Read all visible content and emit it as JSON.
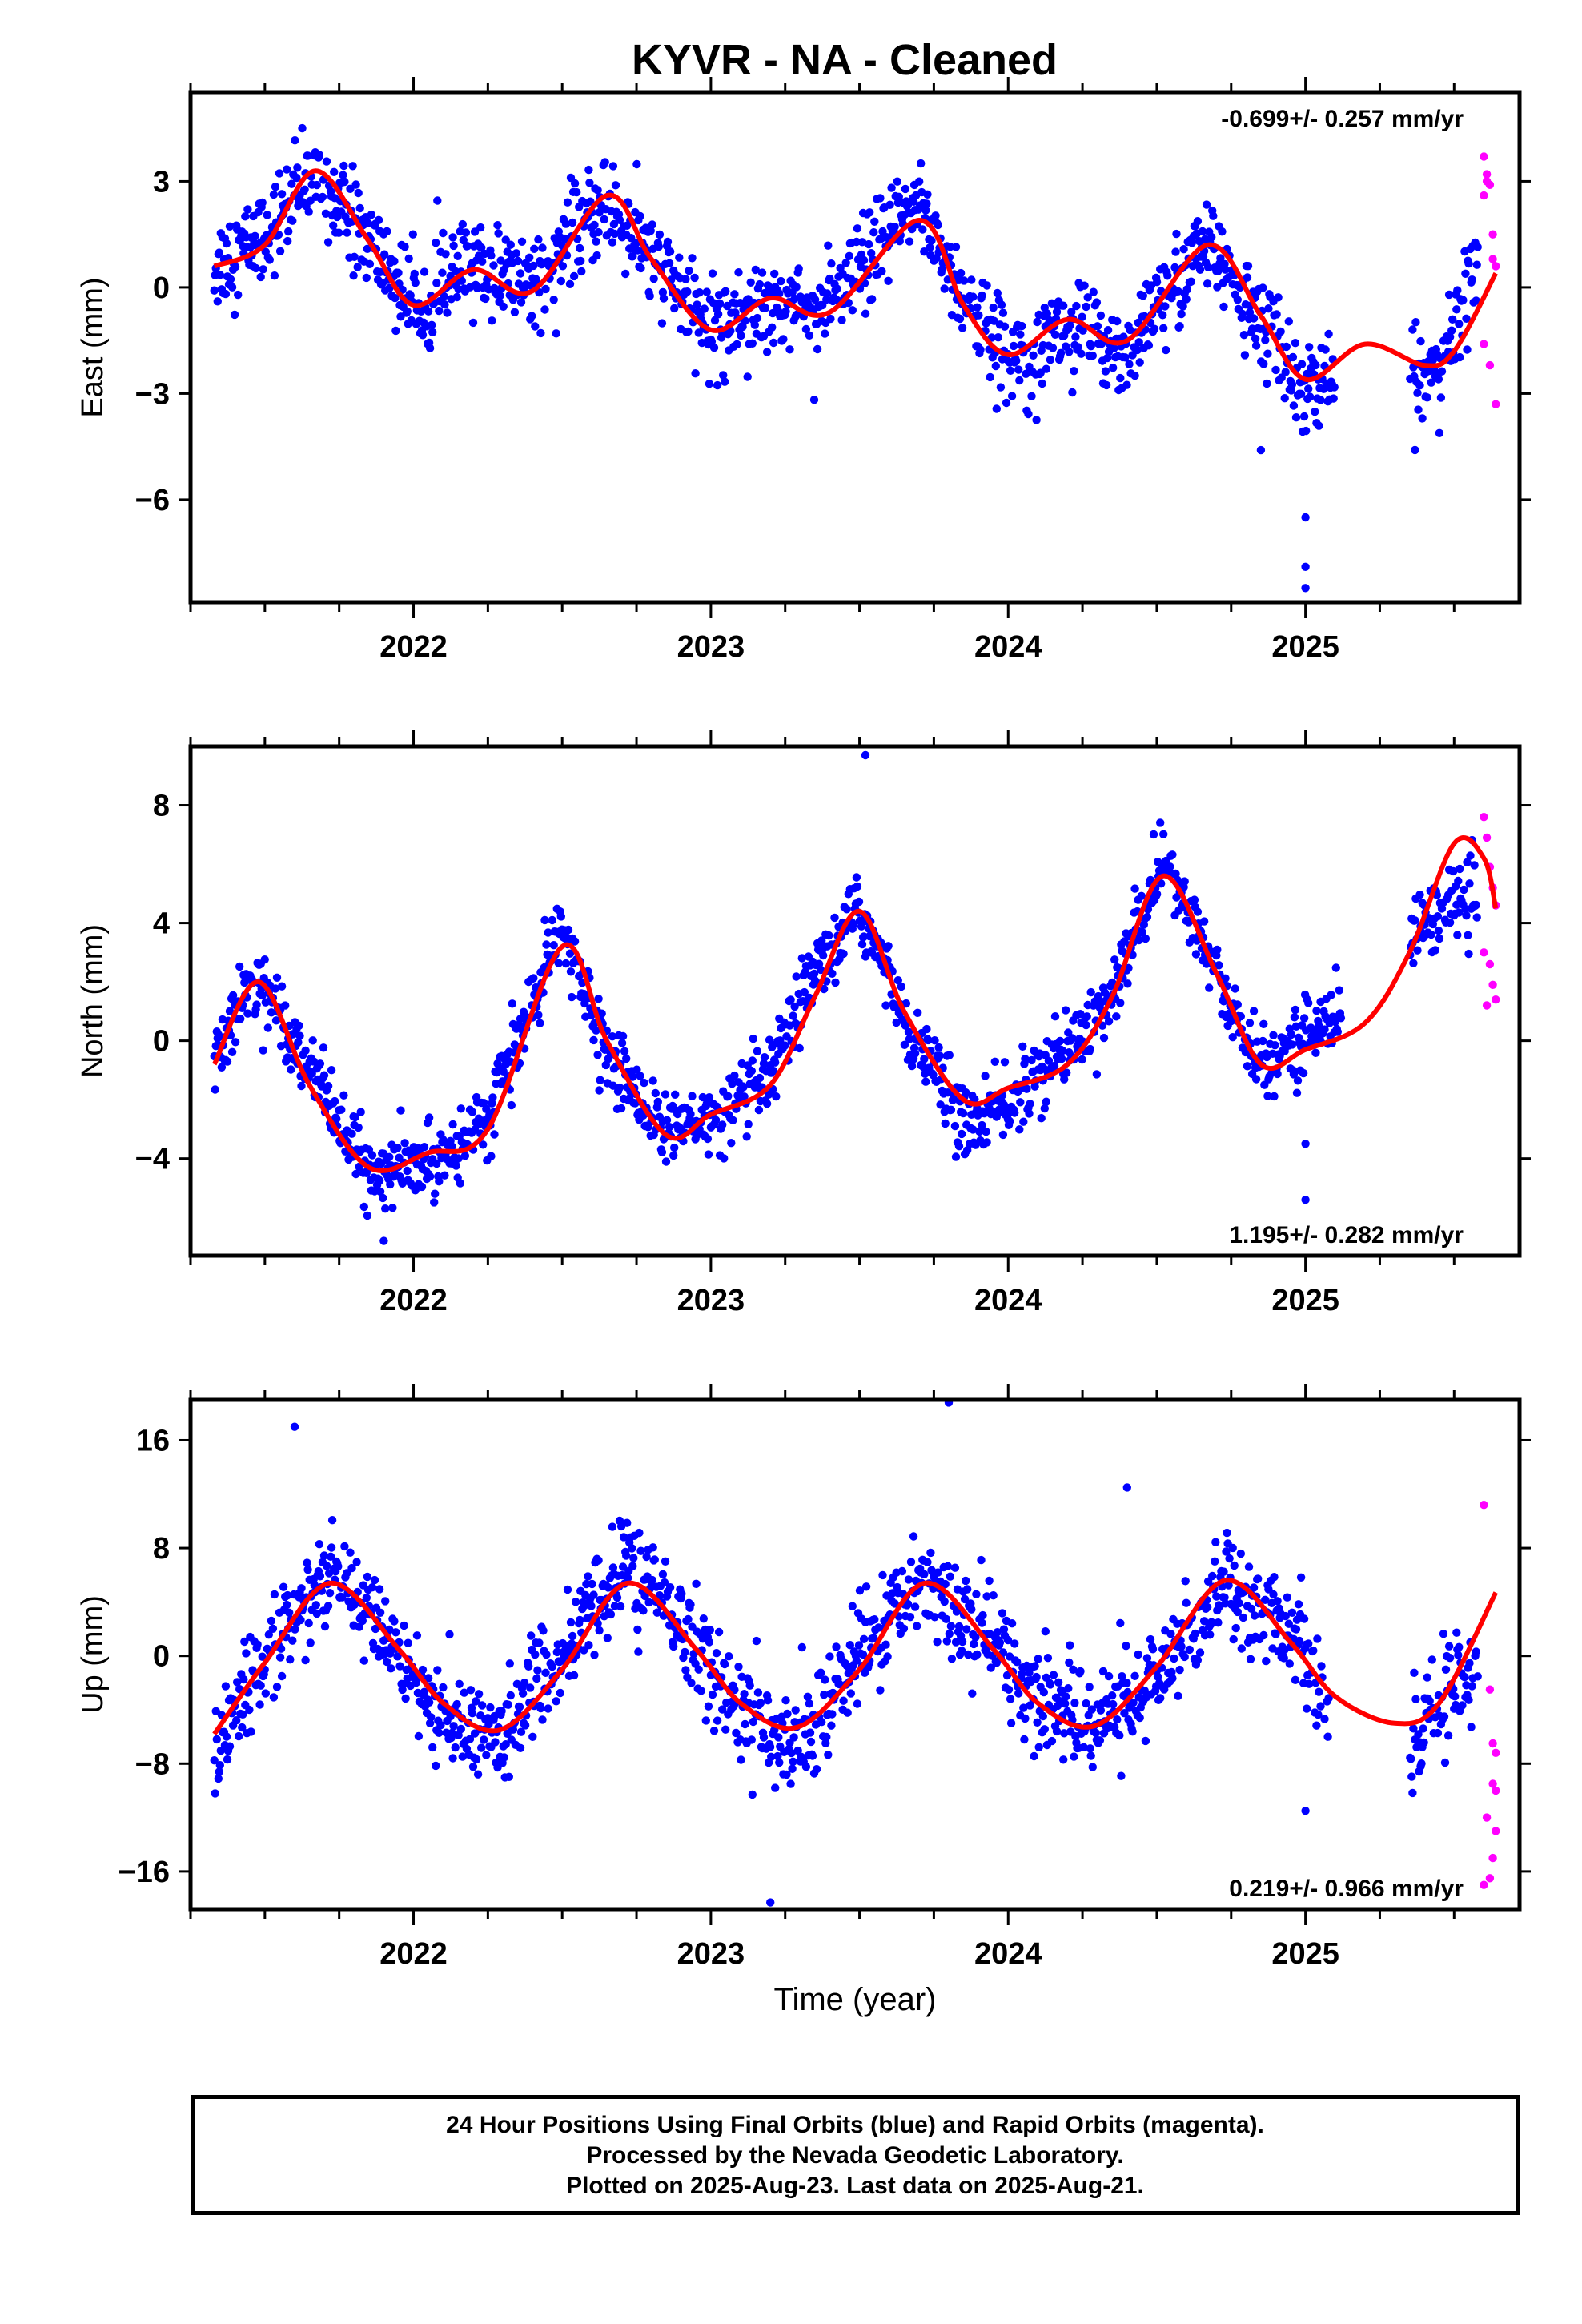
{
  "title": "KYVR  - NA - Cleaned",
  "xlabel": "Time (year)",
  "footer": {
    "line1": "24 Hour Positions Using Final Orbits (blue) and Rapid Orbits (magenta).",
    "line2": "Processed by the Nevada Geodetic Laboratory.",
    "line3": "Plotted on 2025-Aug-23. Last data on 2025-Aug-21."
  },
  "colors": {
    "final": "#0000ff",
    "rapid": "#ff00ff",
    "model": "#ff0000"
  },
  "chart_data": [
    {
      "type": "scatter",
      "component": "East",
      "ylabel": "East (mm)",
      "rate_label": "-0.699+/- 0.257 mm/yr",
      "rate_position": "top-right",
      "xlim": [
        2021.25,
        2025.72
      ],
      "ylim": [
        -8.9,
        5.5
      ],
      "yticks": [
        3,
        0,
        -3,
        -6
      ],
      "ytick_labels": [
        "3",
        "0",
        "−3",
        "−6"
      ],
      "xticks": [
        2022,
        2023,
        2024,
        2025
      ],
      "xtick_labels": [
        "2022",
        "2023",
        "2024",
        "2025"
      ],
      "model_fit": {
        "x": [
          2021.33,
          2021.5,
          2021.67,
          2021.85,
          2022.0,
          2022.2,
          2022.4,
          2022.65,
          2022.8,
          2023.0,
          2023.2,
          2023.4,
          2023.7,
          2023.85,
          2024.0,
          2024.2,
          2024.4,
          2024.67,
          2024.85,
          2025.0,
          2025.2,
          2025.4,
          2025.5,
          2025.64
        ],
        "y": [
          0.6,
          1.2,
          3.3,
          1.3,
          -0.5,
          0.5,
          -0.1,
          2.6,
          0.8,
          -1.2,
          -0.3,
          -0.7,
          1.9,
          -0.5,
          -1.9,
          -0.9,
          -1.5,
          1.2,
          -0.8,
          -2.6,
          -1.6,
          -2.2,
          -1.8,
          0.4
        ]
      },
      "final_trend": {
        "x": [
          2021.33,
          2021.5,
          2021.67,
          2021.85,
          2022.0,
          2022.2,
          2022.4,
          2022.65,
          2022.8,
          2023.0,
          2023.2,
          2023.4,
          2023.7,
          2023.85,
          2024.0,
          2024.2,
          2024.4,
          2024.67,
          2024.85,
          2025.0,
          2025.4,
          2025.5,
          2025.58
        ],
        "y": [
          0.6,
          1.5,
          3.2,
          1.3,
          -0.5,
          0.6,
          0.2,
          2.4,
          0.8,
          -1.2,
          -0.3,
          -0.6,
          2.5,
          -0.4,
          -1.9,
          -1.1,
          -1.8,
          1.3,
          -1.0,
          -2.8,
          -2.6,
          -1.5,
          1.2
        ]
      },
      "final_gaps": [
        [
          2025.1,
          2025.35
        ]
      ],
      "final_spread": 1.2,
      "final_outliers": {
        "x": [
          2025.0,
          2025.0,
          2025.0,
          2024.85
        ],
        "y": [
          -6.5,
          -7.9,
          -8.5,
          -4.6
        ]
      },
      "rapid": {
        "x": [
          2025.6,
          2025.61,
          2025.62,
          2025.63,
          2025.64,
          2025.6,
          2025.62,
          2025.64,
          2025.61,
          2025.63,
          2025.6
        ],
        "y": [
          3.7,
          3.2,
          2.9,
          1.5,
          0.6,
          -1.6,
          -2.2,
          -3.3,
          3.0,
          0.8,
          2.6
        ]
      }
    },
    {
      "type": "scatter",
      "component": "North",
      "ylabel": "North (mm)",
      "rate_label": "1.195+/- 0.282 mm/yr",
      "rate_position": "bottom-right",
      "xlim": [
        2021.25,
        2025.72
      ],
      "ylim": [
        -7.3,
        10.0
      ],
      "yticks": [
        8,
        4,
        0,
        -4
      ],
      "ytick_labels": [
        "8",
        "4",
        "0",
        "−4"
      ],
      "xticks": [
        2022,
        2023,
        2024,
        2025
      ],
      "xtick_labels": [
        "2022",
        "2023",
        "2024",
        "2025"
      ],
      "model_fit": {
        "x": [
          2021.33,
          2021.48,
          2021.65,
          2021.85,
          2022.05,
          2022.25,
          2022.5,
          2022.65,
          2022.85,
          2023.0,
          2023.2,
          2023.35,
          2023.5,
          2023.65,
          2023.85,
          2024.0,
          2024.2,
          2024.35,
          2024.52,
          2024.7,
          2024.85,
          2025.0,
          2025.2,
          2025.35,
          2025.5,
          2025.6,
          2025.64
        ],
        "y": [
          -0.8,
          2.0,
          -1.5,
          -4.3,
          -3.8,
          -3.0,
          3.2,
          0.0,
          -3.2,
          -2.5,
          -1.5,
          1.5,
          4.4,
          1.0,
          -2.0,
          -1.6,
          -0.8,
          1.5,
          5.6,
          2.3,
          -0.8,
          -0.3,
          0.6,
          3.0,
          6.7,
          6.2,
          4.5
        ]
      },
      "final_trend": {
        "x": [
          2021.33,
          2021.48,
          2021.65,
          2021.85,
          2022.05,
          2022.25,
          2022.5,
          2022.65,
          2022.85,
          2023.0,
          2023.2,
          2023.35,
          2023.5,
          2023.65,
          2023.85,
          2024.0,
          2024.2,
          2024.35,
          2024.52,
          2024.7,
          2024.85,
          2025.0,
          2025.1,
          2025.4,
          2025.5,
          2025.58
        ],
        "y": [
          -0.5,
          2.2,
          -0.8,
          -4.6,
          -4.2,
          -2.6,
          3.8,
          -0.5,
          -3.0,
          -2.8,
          -1.2,
          2.2,
          4.5,
          0.8,
          -2.8,
          -2.2,
          -0.2,
          1.5,
          6.2,
          2.2,
          -1.0,
          0.3,
          0.8,
          4.0,
          4.8,
          4.4
        ]
      },
      "final_gaps": [
        [
          2025.12,
          2025.35
        ]
      ],
      "final_spread": 1.1,
      "final_outliers": {
        "x": [
          2023.52,
          2025.0,
          2025.0,
          2021.9
        ],
        "y": [
          9.7,
          -5.4,
          -3.5,
          -6.8
        ]
      },
      "rapid": {
        "x": [
          2025.6,
          2025.61,
          2025.62,
          2025.63,
          2025.64,
          2025.6,
          2025.62,
          2025.64,
          2025.61,
          2025.63
        ],
        "y": [
          7.6,
          6.9,
          5.9,
          5.2,
          4.6,
          3.0,
          2.6,
          1.4,
          1.2,
          1.9
        ]
      }
    },
    {
      "type": "scatter",
      "component": "Up",
      "ylabel": "Up (mm)",
      "rate_label": "0.219+/- 0.966 mm/yr",
      "rate_position": "bottom-right",
      "xlim": [
        2021.25,
        2025.72
      ],
      "ylim": [
        -18.8,
        19.0
      ],
      "yticks": [
        16,
        8,
        0,
        -8,
        -16
      ],
      "ytick_labels": [
        "16",
        "8",
        "0",
        "−8",
        "−16"
      ],
      "xticks": [
        2022,
        2023,
        2024,
        2025
      ],
      "xtick_labels": [
        "2022",
        "2023",
        "2024",
        "2025"
      ],
      "model_fit": {
        "x": [
          2021.33,
          2021.5,
          2021.72,
          2021.95,
          2022.1,
          2022.29,
          2022.5,
          2022.72,
          2022.95,
          2023.1,
          2023.29,
          2023.5,
          2023.72,
          2023.95,
          2024.1,
          2024.29,
          2024.5,
          2024.73,
          2024.95,
          2025.1,
          2025.3,
          2025.45,
          2025.64
        ],
        "y": [
          -5.8,
          -0.5,
          5.4,
          0.5,
          -3.5,
          -5.5,
          -1.0,
          5.4,
          0.5,
          -3.5,
          -5.3,
          -1.0,
          5.4,
          0.5,
          -3.5,
          -5.2,
          -0.8,
          5.6,
          1.0,
          -3.0,
          -5.0,
          -3.5,
          4.7
        ]
      },
      "final_trend": {
        "x": [
          2021.33,
          2021.5,
          2021.72,
          2021.95,
          2022.1,
          2022.29,
          2022.5,
          2022.72,
          2022.95,
          2023.1,
          2023.29,
          2023.5,
          2023.72,
          2023.95,
          2024.1,
          2024.29,
          2024.5,
          2024.73,
          2024.95,
          2025.05,
          2025.35,
          2025.45,
          2025.58
        ],
        "y": [
          -7.0,
          0.0,
          6.0,
          0.5,
          -5.0,
          -6.0,
          0.0,
          7.0,
          1.0,
          -4.0,
          -7.0,
          0.0,
          6.0,
          1.0,
          -3.0,
          -5.0,
          -2.0,
          6.0,
          2.0,
          -3.0,
          -8.0,
          -3.0,
          -1.0
        ]
      },
      "final_gaps": [
        [
          2025.08,
          2025.35
        ]
      ],
      "final_spread": 3.4,
      "final_outliers": {
        "x": [
          2023.2,
          2023.8,
          2021.6,
          2025.0,
          2024.4
        ],
        "y": [
          -18.3,
          18.8,
          17.0,
          -11.5,
          12.5
        ]
      },
      "rapid": {
        "x": [
          2025.6,
          2025.62,
          2025.63,
          2025.64,
          2025.61,
          2025.63,
          2025.64,
          2025.62,
          2025.6,
          2025.63,
          2025.64
        ],
        "y": [
          11.2,
          -2.5,
          -6.5,
          -7.2,
          -12.0,
          -9.5,
          -13.0,
          -16.5,
          -17.0,
          -15.0,
          -10.0
        ]
      }
    }
  ]
}
